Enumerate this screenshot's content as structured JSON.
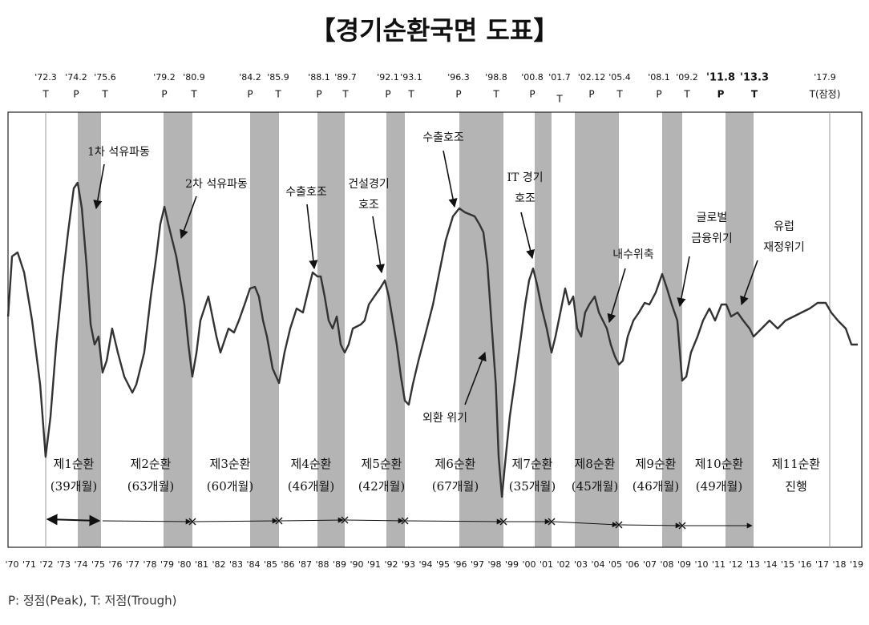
{
  "chart_data": {
    "type": "line",
    "title": "【경기순환국면 도표】",
    "footnote": "P: 정점(Peak), T: 저점(Trough)",
    "x": [
      1970.05,
      1970.28,
      1970.6,
      1970.98,
      1971.44,
      1971.91,
      1972.23,
      1972.51,
      1972.84,
      1973.21,
      1973.53,
      1973.86,
      1974.09,
      1974.33,
      1974.6,
      1974.84,
      1975.07,
      1975.3,
      1975.53,
      1975.77,
      1976.09,
      1976.42,
      1976.79,
      1977.26,
      1977.49,
      1977.72,
      1977.95,
      1978.33,
      1978.65,
      1978.88,
      1979.12,
      1979.35,
      1979.81,
      1980.28,
      1980.51,
      1980.74,
      1980.98,
      1981.21,
      1981.67,
      1982.14,
      1982.37,
      1982.84,
      1983.16,
      1983.44,
      1983.77,
      1984.09,
      1984.37,
      1984.6,
      1984.84,
      1985.07,
      1985.4,
      1985.77,
      1986.09,
      1986.42,
      1986.79,
      1987.16,
      1987.49,
      1987.72,
      1988.0,
      1988.19,
      1988.42,
      1988.65,
      1988.88,
      1989.12,
      1989.35,
      1989.58,
      1989.81,
      1990.05,
      1990.51,
      1990.74,
      1990.98,
      1991.3,
      1991.63,
      1991.91,
      1992.14,
      1992.37,
      1992.6,
      1992.84,
      1993.07,
      1993.3,
      1993.53,
      1993.86,
      1994.23,
      1994.7,
      1995.07,
      1995.44,
      1995.86,
      1996.23,
      1996.56,
      1997.12,
      1997.4,
      1997.63,
      1997.86,
      1998.09,
      1998.35,
      1998.51,
      1998.7,
      1998.88,
      1999.16,
      1999.49,
      1999.81,
      2000.05,
      2000.28,
      2000.51,
      2000.74,
      2001.02,
      2001.3,
      2001.58,
      2001.81,
      2002.14,
      2002.37,
      2002.6,
      2002.84,
      2003.07,
      2003.3,
      2003.53,
      2003.77,
      2004.09,
      2004.33,
      2004.56,
      2004.79,
      2005.02,
      2005.26,
      2005.49,
      2005.72,
      2006.0,
      2006.33,
      2006.65,
      2006.98,
      2007.26,
      2007.63,
      2008.0,
      2008.28,
      2008.56,
      2008.88,
      2009.16,
      2009.4,
      2009.67,
      2010.05,
      2010.37,
      2010.74,
      2011.07,
      2011.44,
      2011.72,
      2012.0,
      2012.37,
      2012.7,
      2013.07,
      2013.3,
      2013.77,
      2014.23,
      2014.7,
      2015.16,
      2015.63,
      2016.09,
      2016.56,
      2017.02,
      2017.49,
      2017.81,
      2018.19,
      2018.65,
      2018.98,
      2019.35
    ],
    "values": [
      288,
      363,
      368,
      343,
      283,
      203,
      113,
      163,
      253,
      333,
      393,
      448,
      455,
      423,
      353,
      278,
      253,
      263,
      218,
      233,
      273,
      243,
      213,
      193,
      203,
      223,
      243,
      313,
      363,
      403,
      425,
      403,
      363,
      303,
      253,
      213,
      243,
      283,
      313,
      263,
      243,
      273,
      268,
      283,
      303,
      323,
      325,
      313,
      283,
      263,
      223,
      205,
      243,
      273,
      298,
      293,
      323,
      343,
      338,
      338,
      313,
      283,
      273,
      288,
      253,
      243,
      253,
      273,
      278,
      283,
      303,
      313,
      323,
      333,
      313,
      283,
      253,
      213,
      183,
      178,
      203,
      233,
      263,
      303,
      343,
      383,
      413,
      423,
      418,
      413,
      403,
      393,
      353,
      283,
      203,
      113,
      63,
      103,
      163,
      213,
      263,
      303,
      333,
      348,
      328,
      298,
      273,
      243,
      263,
      298,
      323,
      303,
      313,
      273,
      263,
      293,
      303,
      313,
      293,
      283,
      273,
      253,
      238,
      228,
      233,
      263,
      283,
      293,
      305,
      303,
      318,
      341,
      323,
      303,
      283,
      208,
      213,
      243,
      263,
      283,
      298,
      283,
      303,
      303,
      288,
      293,
      283,
      273,
      263,
      273,
      283,
      273,
      283,
      288,
      293,
      298,
      305,
      305,
      293,
      283,
      273,
      253,
      253
    ],
    "color": "#333333",
    "ylim": [
      0,
      543
    ],
    "xlim": [
      1970,
      2019.6
    ],
    "xticks": [
      {
        "value": 1970,
        "label": "'70"
      },
      {
        "value": 1971,
        "label": "'71"
      },
      {
        "value": 1972,
        "label": "'72"
      },
      {
        "value": 1973,
        "label": "'73"
      },
      {
        "value": 1974,
        "label": "'74"
      },
      {
        "value": 1975,
        "label": "'75"
      },
      {
        "value": 1976,
        "label": "'76"
      },
      {
        "value": 1977,
        "label": "'77"
      },
      {
        "value": 1978,
        "label": "'78"
      },
      {
        "value": 1979,
        "label": "'79"
      },
      {
        "value": 1980,
        "label": "'80"
      },
      {
        "value": 1981,
        "label": "'81"
      },
      {
        "value": 1982,
        "label": "'82"
      },
      {
        "value": 1983,
        "label": "'83"
      },
      {
        "value": 1984,
        "label": "'84"
      },
      {
        "value": 1985,
        "label": "'85"
      },
      {
        "value": 1986,
        "label": "'86"
      },
      {
        "value": 1987,
        "label": "'87"
      },
      {
        "value": 1988,
        "label": "'88"
      },
      {
        "value": 1989,
        "label": "'89"
      },
      {
        "value": 1990,
        "label": "'90"
      },
      {
        "value": 1991,
        "label": "'91"
      },
      {
        "value": 1992,
        "label": "'92"
      },
      {
        "value": 1993,
        "label": "'93"
      },
      {
        "value": 1994,
        "label": "'94"
      },
      {
        "value": 1995,
        "label": "'95"
      },
      {
        "value": 1996,
        "label": "'96"
      },
      {
        "value": 1997,
        "label": "'97"
      },
      {
        "value": 1998,
        "label": "'98"
      },
      {
        "value": 1999,
        "label": "'99"
      },
      {
        "value": 2000,
        "label": "'00"
      },
      {
        "value": 2001,
        "label": "'01"
      },
      {
        "value": 2002,
        "label": "'02"
      },
      {
        "value": 2003,
        "label": "'03"
      },
      {
        "value": 2004,
        "label": "'04"
      },
      {
        "value": 2005,
        "label": "'05"
      },
      {
        "value": 2006,
        "label": "'06"
      },
      {
        "value": 2007,
        "label": "'07"
      },
      {
        "value": 2008,
        "label": "'08"
      },
      {
        "value": 2009,
        "label": "'09"
      },
      {
        "value": 2010,
        "label": "'10"
      },
      {
        "value": 2011,
        "label": "'11"
      },
      {
        "value": 2012,
        "label": "'12"
      },
      {
        "value": 2013,
        "label": "'13"
      },
      {
        "value": 2014,
        "label": "'14"
      },
      {
        "value": 2015,
        "label": "'15"
      },
      {
        "value": 2016,
        "label": "'16"
      },
      {
        "value": 2017,
        "label": "'17"
      },
      {
        "value": 2018,
        "label": "'18"
      },
      {
        "value": 2019,
        "label": "'19"
      }
    ],
    "turning_points": [
      {
        "date": "'72.3",
        "phase": "T"
      },
      {
        "date": "'74.2",
        "phase": "P"
      },
      {
        "date": "'75.6",
        "phase": "T"
      },
      {
        "date": "'79.2",
        "phase": "P"
      },
      {
        "date": "'80.9",
        "phase": "T"
      },
      {
        "date": "'84.2",
        "phase": "P"
      },
      {
        "date": "'85.9",
        "phase": "T"
      },
      {
        "date": "'88.1",
        "phase": "P"
      },
      {
        "date": "'89.7",
        "phase": "T"
      },
      {
        "date": "'92.1",
        "phase": "P"
      },
      {
        "date": "'93.1",
        "phase": "T"
      },
      {
        "date": "'96.3",
        "phase": "P"
      },
      {
        "date": "'98.8",
        "phase": "T"
      },
      {
        "date": "'00.8",
        "phase": "P"
      },
      {
        "date": "'01.7",
        "phase": "T"
      },
      {
        "date": "'02.12",
        "phase": "P"
      },
      {
        "date": "'05.4",
        "phase": "T"
      },
      {
        "date": "'08.1",
        "phase": "P"
      },
      {
        "date": "'09.2",
        "phase": "T"
      },
      {
        "date": "'11.8",
        "phase": "P"
      },
      {
        "date": "'13.3",
        "phase": "T"
      },
      {
        "date": "'17.9",
        "phase": "T(잠정)"
      }
    ],
    "annotations": [
      [
        "1차 석유파동"
      ],
      [
        "2차 석유파동"
      ],
      [
        "수출호조"
      ],
      [
        "건설경기",
        "호조"
      ],
      [
        "수출호조"
      ],
      [
        "외환 위기"
      ],
      [
        "IT 경기",
        "호조"
      ],
      [
        "내수위축"
      ],
      [
        "글로벌",
        "금융위기"
      ],
      [
        "유럽",
        "재정위기"
      ]
    ],
    "cycles": [
      {
        "name": "제1순환",
        "duration": "(39개월)"
      },
      {
        "name": "제2순환",
        "duration": "(63개월)"
      },
      {
        "name": "제3순환",
        "duration": "(60개월)"
      },
      {
        "name": "제4순환",
        "duration": "(46개월)"
      },
      {
        "name": "제5순환",
        "duration": "(42개월)"
      },
      {
        "name": "제6순환",
        "duration": "(67개월)"
      },
      {
        "name": "제7순환",
        "duration": "(35개월)"
      },
      {
        "name": "제8순환",
        "duration": "(45개월)"
      },
      {
        "name": "제9순환",
        "duration": "(46개월)"
      },
      {
        "name": "제10순환",
        "duration": "(49개월)"
      },
      {
        "name": "제11순환",
        "duration": "진행"
      }
    ]
  }
}
